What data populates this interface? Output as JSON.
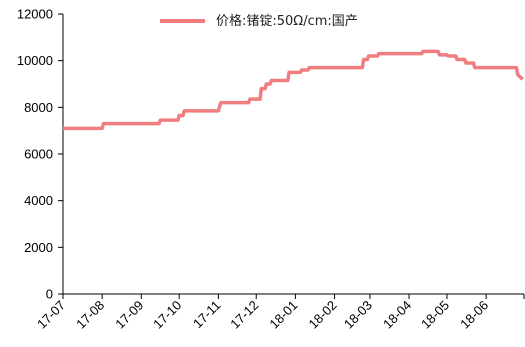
{
  "chart_data": {
    "type": "line",
    "title": "",
    "xlabel": "",
    "ylabel": "",
    "ylim": [
      0,
      12000
    ],
    "yticks": [
      0,
      2000,
      4000,
      6000,
      8000,
      10000,
      12000
    ],
    "ytick_labels": [
      "0",
      "2000",
      "4000",
      "6000",
      "8000",
      "10000",
      "12000"
    ],
    "xticks": [
      "17-07",
      "17-08",
      "17-09",
      "17-10",
      "17-11",
      "17-12",
      "18-01",
      "18-02",
      "18-03",
      "18-04",
      "18-05",
      "18-06"
    ],
    "grid": false,
    "legend_position": "top",
    "colors": {
      "series": "#f07d7f",
      "axis": "#000000"
    },
    "series": [
      {
        "name": "价格:锗锭:50Ω/cm:国产",
        "x": [
          "2017-07-01",
          "2017-08-01",
          "2017-08-02",
          "2017-09-01",
          "2017-09-15",
          "2017-09-16",
          "2017-09-30",
          "2017-10-01",
          "2017-10-04",
          "2017-10-05",
          "2017-10-31",
          "2017-11-01",
          "2017-11-02",
          "2017-11-03",
          "2017-11-25",
          "2017-11-26",
          "2017-12-04",
          "2017-12-05",
          "2017-12-08",
          "2017-12-09",
          "2017-12-12",
          "2017-12-13",
          "2017-12-26",
          "2017-12-27",
          "2018-01-05",
          "2018-01-06",
          "2018-01-11",
          "2018-01-12",
          "2018-02-23",
          "2018-02-24",
          "2018-02-27",
          "2018-02-28",
          "2018-03-07",
          "2018-03-08",
          "2018-04-11",
          "2018-04-12",
          "2018-04-24",
          "2018-04-25",
          "2018-05-01",
          "2018-05-02",
          "2018-05-08",
          "2018-05-09",
          "2018-05-15",
          "2018-05-16",
          "2018-05-22",
          "2018-05-23",
          "2018-06-25",
          "2018-06-26",
          "2018-06-30"
        ],
        "values": [
          7100,
          7100,
          7300,
          7300,
          7300,
          7450,
          7450,
          7650,
          7650,
          7850,
          7850,
          7850,
          8050,
          8200,
          8200,
          8350,
          8350,
          8800,
          8800,
          9000,
          9000,
          9150,
          9150,
          9500,
          9500,
          9600,
          9600,
          9700,
          9700,
          10050,
          10050,
          10200,
          10200,
          10300,
          10300,
          10400,
          10400,
          10250,
          10250,
          10200,
          10200,
          10050,
          10050,
          9900,
          9900,
          9700,
          9700,
          9400,
          9200
        ]
      }
    ]
  }
}
